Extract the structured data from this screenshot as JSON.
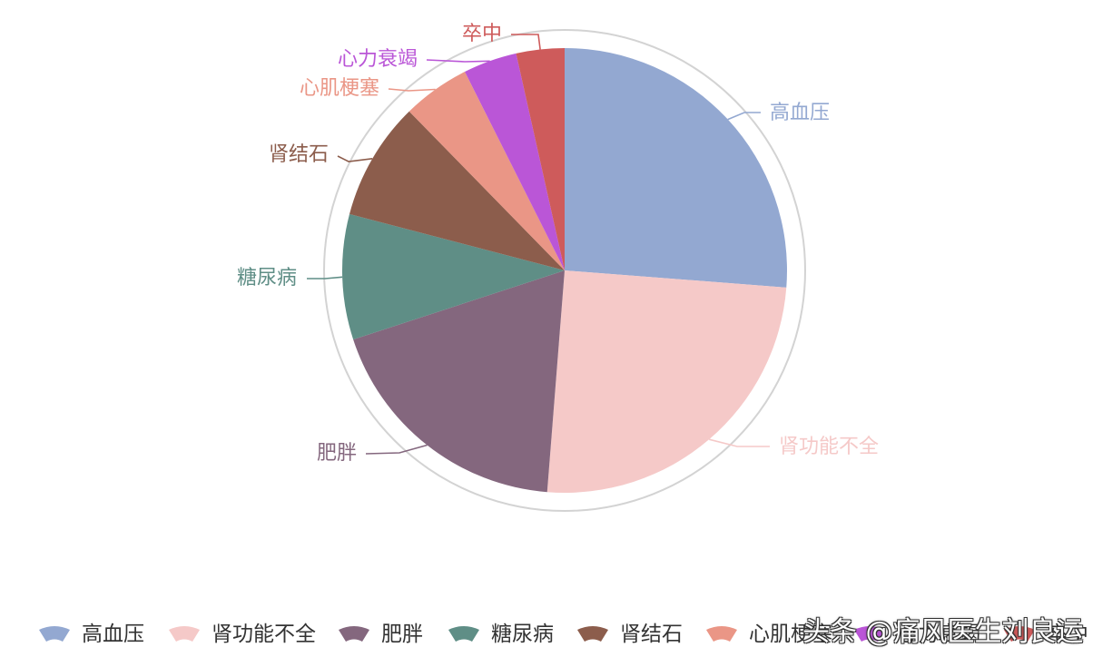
{
  "chart_data": {
    "type": "pie",
    "title": "",
    "categories": [
      "高血压",
      "肾功能不全",
      "肥胖",
      "糖尿病",
      "肾结石",
      "心肌梗塞",
      "心力衰竭",
      "卒中"
    ],
    "values": [
      26.2,
      25.0,
      18.7,
      9.1,
      8.6,
      4.9,
      3.9,
      3.5
    ],
    "colors": [
      "#93A8D1",
      "#F5C9C8",
      "#84677E",
      "#5F8E86",
      "#8C5D4C",
      "#EA9686",
      "#BA56D7",
      "#CE5B5B"
    ],
    "legend_position": "bottom",
    "outer_ring_color": "#D3D3D3"
  },
  "watermark": "头条 @痛风医生刘良运"
}
